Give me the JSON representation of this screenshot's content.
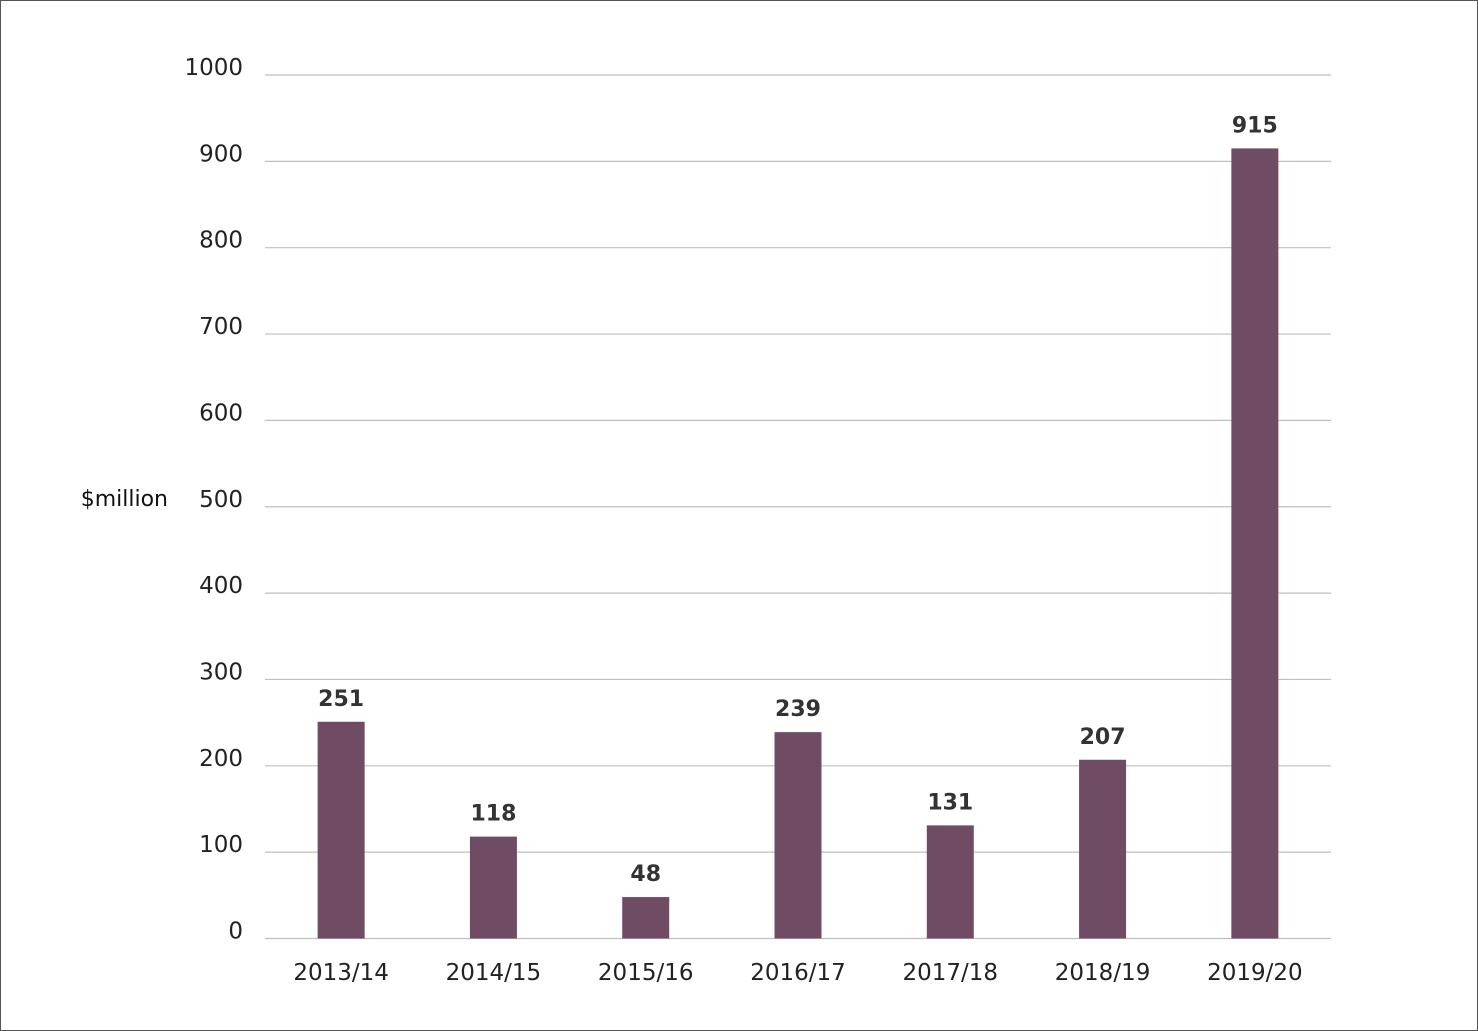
{
  "chart_data": {
    "type": "bar",
    "title": "",
    "xlabel": "",
    "ylabel": "$million",
    "ylim": [
      0,
      1000
    ],
    "yticks": [
      0,
      100,
      200,
      300,
      400,
      500,
      600,
      700,
      800,
      900,
      1000
    ],
    "grid": true,
    "categories": [
      "2013/14",
      "2014/15",
      "2015/16",
      "2016/17",
      "2017/18",
      "2018/19",
      "2019/20"
    ],
    "values": [
      251,
      118,
      48,
      239,
      131,
      207,
      915
    ],
    "data_labels": [
      "251",
      "118",
      "48",
      "239",
      "131",
      "207",
      "915"
    ],
    "bar_color": "#704c64"
  }
}
